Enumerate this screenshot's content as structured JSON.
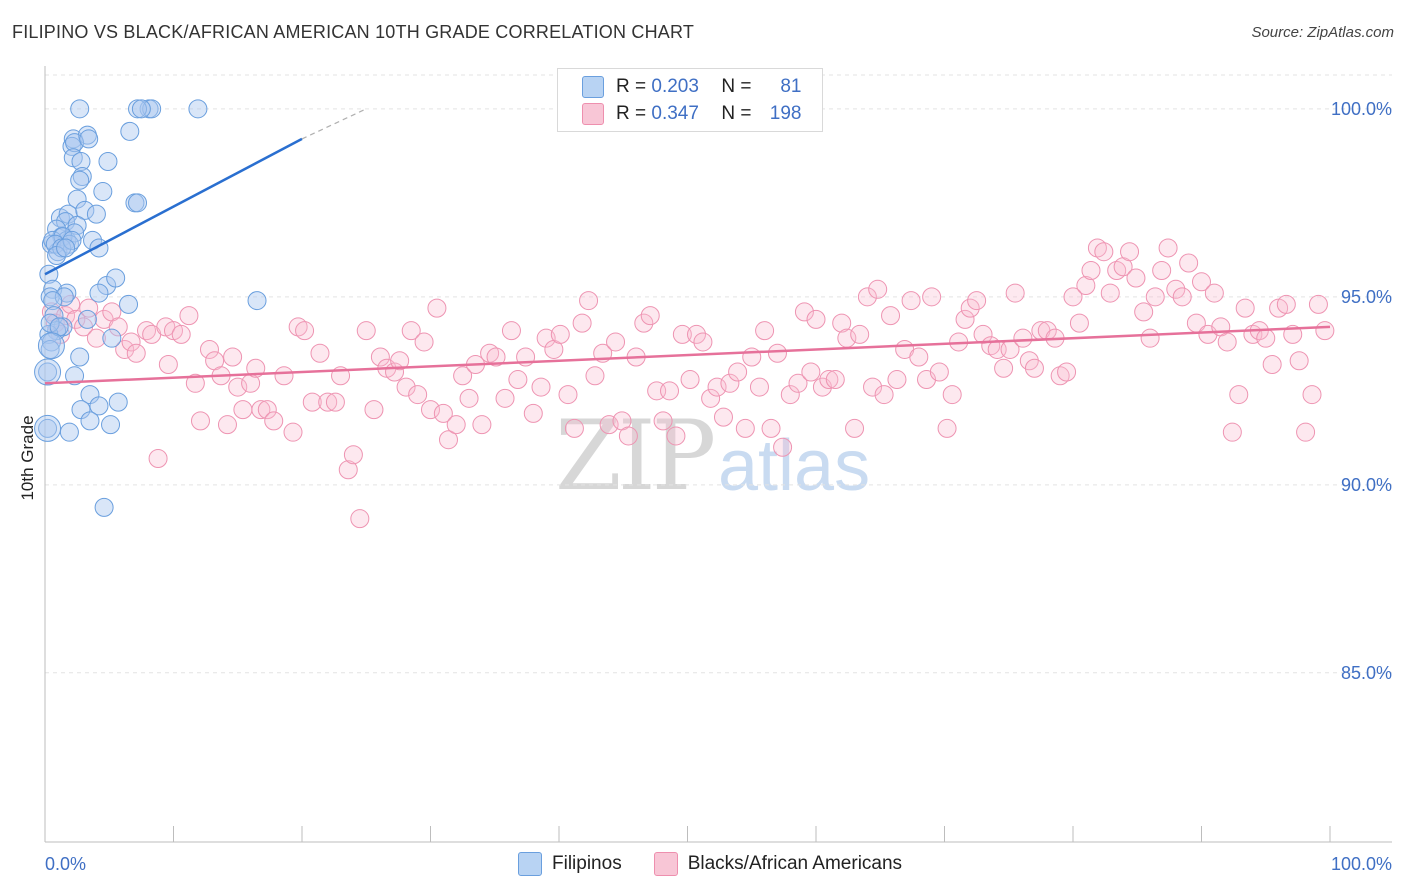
{
  "header": {
    "title": "FILIPINO VS BLACK/AFRICAN AMERICAN 10TH GRADE CORRELATION CHART",
    "source": "Source: ZipAtlas.com"
  },
  "legend": {
    "r_label": "R =",
    "n_label": "N =",
    "series": [
      {
        "name": "Filipinos",
        "r": "0.203",
        "n": "81",
        "fill": "#b8d3f3",
        "stroke": "#6a9fde"
      },
      {
        "name": "Blacks/African Americans",
        "r": "0.347",
        "n": "198",
        "fill": "#f8c6d6",
        "stroke": "#ee8fae"
      }
    ]
  },
  "watermark": {
    "zip": "ZIP",
    "atlas": "atlas"
  },
  "chart_data": {
    "type": "scatter",
    "title": "FILIPINO VS BLACK/AFRICAN AMERICAN 10TH GRADE CORRELATION CHART",
    "xlabel": "",
    "ylabel": "10th Grade",
    "xlim": [
      0,
      100
    ],
    "ylim": [
      80.5,
      100.9
    ],
    "x_tick_labels": [
      "0.0%",
      "100.0%"
    ],
    "y_ticks": [
      85,
      90,
      95,
      100
    ],
    "y_tick_labels": [
      "85.0%",
      "90.0%",
      "95.0%",
      "100.0%"
    ],
    "grid": true,
    "colors": {
      "blue_line": "#2a6fd0",
      "pink_line": "#e6719a",
      "grid": "#e3e3e3"
    },
    "series": [
      {
        "name": "Filipinos",
        "trend": {
          "x": [
            0,
            20
          ],
          "y": [
            95.6,
            99.2
          ],
          "dashed_to": [
            25,
            100.0
          ]
        },
        "points": [
          [
            2.7,
            100.0
          ],
          [
            8.1,
            100.0
          ],
          [
            8.3,
            100.0
          ],
          [
            7.2,
            100.0
          ],
          [
            11.9,
            100.0
          ],
          [
            7.5,
            100.0
          ],
          [
            2.2,
            99.2
          ],
          [
            3.3,
            99.3
          ],
          [
            2.1,
            99.0
          ],
          [
            6.6,
            99.4
          ],
          [
            2.3,
            99.1
          ],
          [
            3.4,
            99.2
          ],
          [
            2.2,
            98.7
          ],
          [
            2.8,
            98.6
          ],
          [
            4.9,
            98.6
          ],
          [
            2.9,
            98.2
          ],
          [
            2.7,
            98.1
          ],
          [
            4.5,
            97.8
          ],
          [
            7.0,
            97.5
          ],
          [
            2.5,
            97.6
          ],
          [
            7.2,
            97.5
          ],
          [
            1.2,
            97.1
          ],
          [
            1.8,
            97.2
          ],
          [
            3.1,
            97.3
          ],
          [
            4.0,
            97.2
          ],
          [
            1.6,
            97.0
          ],
          [
            2.5,
            96.9
          ],
          [
            0.9,
            96.8
          ],
          [
            1.3,
            96.6
          ],
          [
            1.7,
            96.5
          ],
          [
            0.5,
            96.4
          ],
          [
            1.0,
            96.2
          ],
          [
            2.3,
            96.7
          ],
          [
            0.6,
            96.5
          ],
          [
            1.4,
            96.6
          ],
          [
            1.9,
            96.4
          ],
          [
            3.7,
            96.5
          ],
          [
            0.8,
            96.4
          ],
          [
            4.2,
            96.3
          ],
          [
            1.3,
            96.3
          ],
          [
            0.3,
            95.6
          ],
          [
            0.6,
            95.2
          ],
          [
            1.7,
            95.1
          ],
          [
            4.8,
            95.3
          ],
          [
            5.5,
            95.5
          ],
          [
            0.4,
            95.0
          ],
          [
            1.5,
            95.0
          ],
          [
            4.2,
            95.1
          ],
          [
            0.6,
            94.9
          ],
          [
            6.5,
            94.8
          ],
          [
            16.5,
            94.9
          ],
          [
            0.7,
            94.5
          ],
          [
            1.4,
            94.2
          ],
          [
            3.3,
            94.4
          ],
          [
            0.9,
            94.1
          ],
          [
            0.3,
            94.0
          ],
          [
            0.5,
            93.8
          ],
          [
            5.2,
            93.9
          ],
          [
            0.4,
            93.6
          ],
          [
            2.7,
            93.4
          ],
          [
            0.2,
            93.0
          ],
          [
            2.3,
            92.9
          ],
          [
            3.5,
            92.4
          ],
          [
            5.7,
            92.2
          ],
          [
            2.8,
            92.0
          ],
          [
            4.2,
            92.1
          ],
          [
            3.5,
            91.7
          ],
          [
            5.1,
            91.6
          ],
          [
            0.2,
            91.5
          ],
          [
            1.9,
            91.4
          ],
          [
            4.6,
            89.4
          ],
          [
            0.4,
            94.3
          ],
          [
            1.1,
            94.2
          ],
          [
            2.1,
            96.5
          ],
          [
            0.9,
            96.1
          ],
          [
            1.6,
            96.3
          ]
        ]
      },
      {
        "name": "Blacks/African Americans",
        "trend": {
          "x": [
            0,
            100
          ],
          "y": [
            92.7,
            94.2
          ]
        },
        "points": [
          [
            0.5,
            94.6
          ],
          [
            0.8,
            94.3
          ],
          [
            1.2,
            94.0
          ],
          [
            1.6,
            94.5
          ],
          [
            2.0,
            94.8
          ],
          [
            2.4,
            94.4
          ],
          [
            3.0,
            94.2
          ],
          [
            3.4,
            94.7
          ],
          [
            4.0,
            93.9
          ],
          [
            4.6,
            94.4
          ],
          [
            5.2,
            94.6
          ],
          [
            5.7,
            94.2
          ],
          [
            6.2,
            93.6
          ],
          [
            6.7,
            93.8
          ],
          [
            7.1,
            93.5
          ],
          [
            7.9,
            94.1
          ],
          [
            8.3,
            94.0
          ],
          [
            8.8,
            90.7
          ],
          [
            9.4,
            94.2
          ],
          [
            9.6,
            93.2
          ],
          [
            10.0,
            94.1
          ],
          [
            10.6,
            94.0
          ],
          [
            11.2,
            94.5
          ],
          [
            11.7,
            92.7
          ],
          [
            12.1,
            91.7
          ],
          [
            12.8,
            93.6
          ],
          [
            13.2,
            93.3
          ],
          [
            13.7,
            92.9
          ],
          [
            14.2,
            91.6
          ],
          [
            14.6,
            93.4
          ],
          [
            15.0,
            92.6
          ],
          [
            15.4,
            92.0
          ],
          [
            16.0,
            92.7
          ],
          [
            16.4,
            93.1
          ],
          [
            16.8,
            92.0
          ],
          [
            17.3,
            92.0
          ],
          [
            17.8,
            91.7
          ],
          [
            18.6,
            92.9
          ],
          [
            19.3,
            91.4
          ],
          [
            19.7,
            94.2
          ],
          [
            20.2,
            94.1
          ],
          [
            20.8,
            92.2
          ],
          [
            21.4,
            93.5
          ],
          [
            22.0,
            92.2
          ],
          [
            22.6,
            92.2
          ],
          [
            23.0,
            92.9
          ],
          [
            23.6,
            90.4
          ],
          [
            24.0,
            90.8
          ],
          [
            24.5,
            89.1
          ],
          [
            25.0,
            94.1
          ],
          [
            25.6,
            92.0
          ],
          [
            26.1,
            93.4
          ],
          [
            26.6,
            93.1
          ],
          [
            27.2,
            93.0
          ],
          [
            27.6,
            93.3
          ],
          [
            28.1,
            92.6
          ],
          [
            28.5,
            94.1
          ],
          [
            29.0,
            92.4
          ],
          [
            29.5,
            93.8
          ],
          [
            30.0,
            92.0
          ],
          [
            30.5,
            94.7
          ],
          [
            31.0,
            91.9
          ],
          [
            31.4,
            91.2
          ],
          [
            32.0,
            91.6
          ],
          [
            32.5,
            92.9
          ],
          [
            33.0,
            92.3
          ],
          [
            33.5,
            93.2
          ],
          [
            34.0,
            91.6
          ],
          [
            34.6,
            93.5
          ],
          [
            35.1,
            93.4
          ],
          [
            35.8,
            92.3
          ],
          [
            36.3,
            94.1
          ],
          [
            36.8,
            92.8
          ],
          [
            37.4,
            93.4
          ],
          [
            38.0,
            91.9
          ],
          [
            38.6,
            92.6
          ],
          [
            39.0,
            93.9
          ],
          [
            39.6,
            93.6
          ],
          [
            40.1,
            94.0
          ],
          [
            40.7,
            92.4
          ],
          [
            41.2,
            91.5
          ],
          [
            41.8,
            94.3
          ],
          [
            42.3,
            94.9
          ],
          [
            42.8,
            92.9
          ],
          [
            43.4,
            93.5
          ],
          [
            43.9,
            91.6
          ],
          [
            44.4,
            93.8
          ],
          [
            44.9,
            91.7
          ],
          [
            45.4,
            91.3
          ],
          [
            46.0,
            93.4
          ],
          [
            46.6,
            94.3
          ],
          [
            47.1,
            94.5
          ],
          [
            47.6,
            92.5
          ],
          [
            48.1,
            91.7
          ],
          [
            48.6,
            92.5
          ],
          [
            49.1,
            91.3
          ],
          [
            49.6,
            94.0
          ],
          [
            50.2,
            92.8
          ],
          [
            50.7,
            94.0
          ],
          [
            51.2,
            93.8
          ],
          [
            51.8,
            92.3
          ],
          [
            52.3,
            92.6
          ],
          [
            52.8,
            91.8
          ],
          [
            53.3,
            92.7
          ],
          [
            53.9,
            93.0
          ],
          [
            54.5,
            91.5
          ],
          [
            55.0,
            93.4
          ],
          [
            55.6,
            92.6
          ],
          [
            56.0,
            94.1
          ],
          [
            56.5,
            91.5
          ],
          [
            57.0,
            93.5
          ],
          [
            57.4,
            91.0
          ],
          [
            58.0,
            92.4
          ],
          [
            58.6,
            92.7
          ],
          [
            59.1,
            94.6
          ],
          [
            59.6,
            93.0
          ],
          [
            60.0,
            94.4
          ],
          [
            60.5,
            92.6
          ],
          [
            61.0,
            92.8
          ],
          [
            61.5,
            92.8
          ],
          [
            62.0,
            94.3
          ],
          [
            62.4,
            93.9
          ],
          [
            63.0,
            91.5
          ],
          [
            63.4,
            94.0
          ],
          [
            64.0,
            95.0
          ],
          [
            64.4,
            92.6
          ],
          [
            64.8,
            95.2
          ],
          [
            65.3,
            92.4
          ],
          [
            65.8,
            94.5
          ],
          [
            66.3,
            92.8
          ],
          [
            66.9,
            93.6
          ],
          [
            67.4,
            94.9
          ],
          [
            68.0,
            93.4
          ],
          [
            68.6,
            92.8
          ],
          [
            69.0,
            95.0
          ],
          [
            69.6,
            93.0
          ],
          [
            70.2,
            91.5
          ],
          [
            70.6,
            92.4
          ],
          [
            71.1,
            93.8
          ],
          [
            71.6,
            94.4
          ],
          [
            72.0,
            94.7
          ],
          [
            72.5,
            94.9
          ],
          [
            73.0,
            94.0
          ],
          [
            73.6,
            93.7
          ],
          [
            74.1,
            93.6
          ],
          [
            74.6,
            93.1
          ],
          [
            75.1,
            93.6
          ],
          [
            75.5,
            95.1
          ],
          [
            76.1,
            93.9
          ],
          [
            76.6,
            93.3
          ],
          [
            77.0,
            93.1
          ],
          [
            77.5,
            94.1
          ],
          [
            78.0,
            94.1
          ],
          [
            78.6,
            93.9
          ],
          [
            79.0,
            92.9
          ],
          [
            79.5,
            93.0
          ],
          [
            80.0,
            95.0
          ],
          [
            80.5,
            94.3
          ],
          [
            81.0,
            95.3
          ],
          [
            81.4,
            95.7
          ],
          [
            81.9,
            96.3
          ],
          [
            82.4,
            96.2
          ],
          [
            82.9,
            95.1
          ],
          [
            83.4,
            95.7
          ],
          [
            83.9,
            95.8
          ],
          [
            84.4,
            96.2
          ],
          [
            84.9,
            95.5
          ],
          [
            85.5,
            94.6
          ],
          [
            86.0,
            93.9
          ],
          [
            86.4,
            95.0
          ],
          [
            86.9,
            95.7
          ],
          [
            87.4,
            96.3
          ],
          [
            88.0,
            95.2
          ],
          [
            88.5,
            95.0
          ],
          [
            89.0,
            95.9
          ],
          [
            89.6,
            94.3
          ],
          [
            90.0,
            95.4
          ],
          [
            90.5,
            94.0
          ],
          [
            91.0,
            95.1
          ],
          [
            91.5,
            94.2
          ],
          [
            92.0,
            93.8
          ],
          [
            92.4,
            91.4
          ],
          [
            92.9,
            92.4
          ],
          [
            93.4,
            94.7
          ],
          [
            94.0,
            94.0
          ],
          [
            94.5,
            94.1
          ],
          [
            95.0,
            93.9
          ],
          [
            95.5,
            93.2
          ],
          [
            96.0,
            94.7
          ],
          [
            96.6,
            94.8
          ],
          [
            97.1,
            94.0
          ],
          [
            97.6,
            93.3
          ],
          [
            98.1,
            91.4
          ],
          [
            98.6,
            92.4
          ],
          [
            99.1,
            94.8
          ],
          [
            99.6,
            94.1
          ]
        ]
      }
    ]
  }
}
